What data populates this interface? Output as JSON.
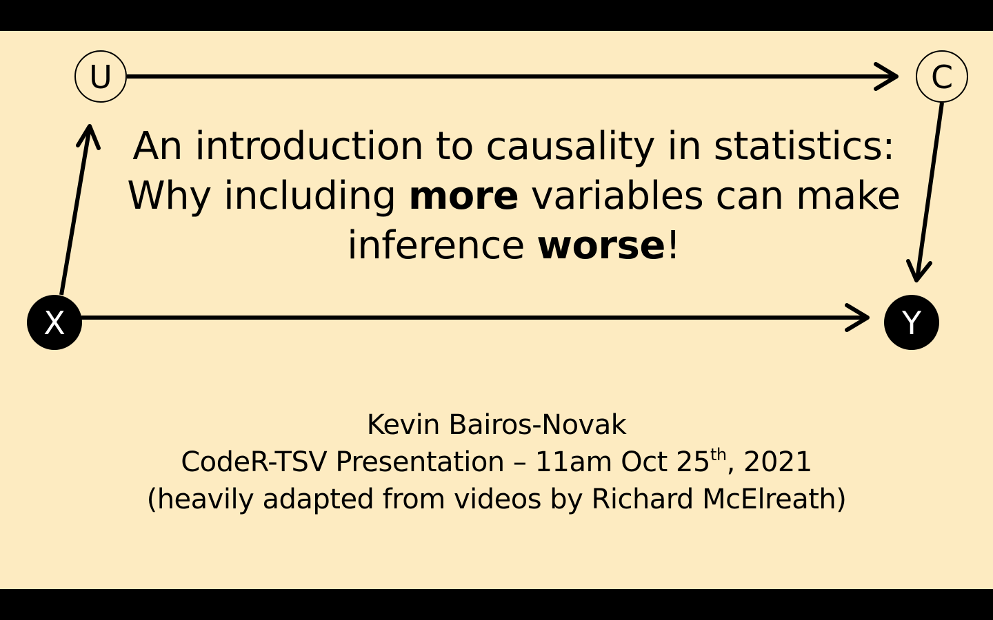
{
  "title": {
    "line1": "An introduction to causality in statistics:",
    "line2_pre": "Why including ",
    "line2_bold": "more",
    "line2_post": " variables can make",
    "line3_pre": "inference ",
    "line3_bold": "worse",
    "line3_post": "!"
  },
  "subtitle": {
    "author": "Kevin Bairos-Novak",
    "event_pre": "CodeR-TSV Presentation – 11am Oct 25",
    "event_sup": "th",
    "event_post": ", 2021",
    "credit": "(heavily adapted from videos by Richard McElreath)"
  },
  "dag": {
    "nodes": [
      {
        "id": "U",
        "label": "U",
        "style": "open"
      },
      {
        "id": "C",
        "label": "C",
        "style": "open"
      },
      {
        "id": "X",
        "label": "X",
        "style": "filled"
      },
      {
        "id": "Y",
        "label": "Y",
        "style": "filled"
      }
    ],
    "edges": [
      {
        "from": "X",
        "to": "U"
      },
      {
        "from": "U",
        "to": "C"
      },
      {
        "from": "C",
        "to": "Y"
      },
      {
        "from": "X",
        "to": "Y"
      }
    ]
  },
  "colors": {
    "background": "#FDEBC1",
    "letterbox": "#000000",
    "ink": "#000000"
  }
}
